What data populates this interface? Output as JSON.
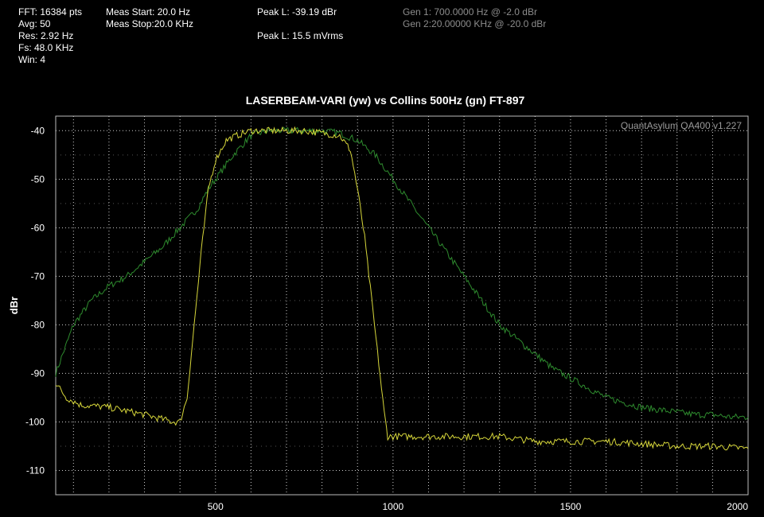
{
  "header": {
    "col1": [
      "FFT: 16384 pts",
      "Avg: 50",
      "Res: 2.92 Hz",
      "Fs: 48.0 KHz",
      "Win: 4"
    ],
    "col2": [
      "Meas Start: 20.0 Hz",
      "Meas Stop:20.0 KHz"
    ],
    "col3": [
      "Peak L: -39.19 dBr",
      "Peak L: 15.5 mVrms"
    ],
    "col4": [
      "Gen 1: 700.0000 Hz @ -2.0  dBr",
      "Gen 2:20.00000 KHz @ -20.0  dBr"
    ]
  },
  "chart_data": {
    "type": "line",
    "title": "LASERBEAM-VARI (yw) vs Collins 500Hz (gn) FT-897",
    "watermark": "QuantAsylum QA400 v1.227",
    "xlabel": "",
    "ylabel": "dBr",
    "xlim": [
      50,
      2000
    ],
    "ylim": [
      -115,
      -37
    ],
    "xticks": [
      500,
      1000,
      1500,
      2000
    ],
    "yticks": [
      -40,
      -50,
      -60,
      -70,
      -80,
      -90,
      -100,
      -110
    ],
    "grid": true,
    "series": [
      {
        "color": "#2e8b2e",
        "points": [
          [
            50,
            -90
          ],
          [
            70,
            -86
          ],
          [
            100,
            -80
          ],
          [
            150,
            -75
          ],
          [
            200,
            -72
          ],
          [
            250,
            -70
          ],
          [
            300,
            -67
          ],
          [
            350,
            -64
          ],
          [
            400,
            -60
          ],
          [
            450,
            -56
          ],
          [
            480,
            -52
          ],
          [
            500,
            -50
          ],
          [
            550,
            -45
          ],
          [
            600,
            -41
          ],
          [
            650,
            -40
          ],
          [
            700,
            -40
          ],
          [
            750,
            -40
          ],
          [
            800,
            -40
          ],
          [
            850,
            -40.5
          ],
          [
            900,
            -42
          ],
          [
            950,
            -45
          ],
          [
            1000,
            -50
          ],
          [
            1050,
            -55
          ],
          [
            1100,
            -60
          ],
          [
            1150,
            -65
          ],
          [
            1200,
            -70
          ],
          [
            1250,
            -75
          ],
          [
            1300,
            -80
          ],
          [
            1350,
            -83
          ],
          [
            1400,
            -86
          ],
          [
            1450,
            -89
          ],
          [
            1500,
            -91
          ],
          [
            1550,
            -93
          ],
          [
            1600,
            -95
          ],
          [
            1650,
            -96
          ],
          [
            1700,
            -97
          ],
          [
            1750,
            -97.5
          ],
          [
            1800,
            -98
          ],
          [
            1850,
            -98.5
          ],
          [
            1900,
            -98.5
          ],
          [
            1950,
            -99
          ],
          [
            2000,
            -99
          ]
        ]
      },
      {
        "color": "#d6d63a",
        "points": [
          [
            50,
            -92
          ],
          [
            80,
            -95
          ],
          [
            120,
            -96.5
          ],
          [
            200,
            -97
          ],
          [
            300,
            -98.5
          ],
          [
            380,
            -100
          ],
          [
            400,
            -100
          ],
          [
            420,
            -95
          ],
          [
            440,
            -80
          ],
          [
            460,
            -65
          ],
          [
            480,
            -52
          ],
          [
            500,
            -46
          ],
          [
            530,
            -42
          ],
          [
            560,
            -41
          ],
          [
            600,
            -40
          ],
          [
            650,
            -40
          ],
          [
            700,
            -40
          ],
          [
            750,
            -40
          ],
          [
            800,
            -40.5
          ],
          [
            850,
            -41
          ],
          [
            880,
            -44
          ],
          [
            900,
            -52
          ],
          [
            920,
            -62
          ],
          [
            940,
            -75
          ],
          [
            960,
            -88
          ],
          [
            975,
            -98
          ],
          [
            985,
            -103
          ],
          [
            1000,
            -103
          ],
          [
            1100,
            -103
          ],
          [
            1200,
            -103
          ],
          [
            1300,
            -103
          ],
          [
            1400,
            -104
          ],
          [
            1500,
            -104
          ],
          [
            1600,
            -104
          ],
          [
            1700,
            -104.5
          ],
          [
            1800,
            -105
          ],
          [
            1900,
            -105
          ],
          [
            2000,
            -105.5
          ]
        ]
      }
    ]
  }
}
